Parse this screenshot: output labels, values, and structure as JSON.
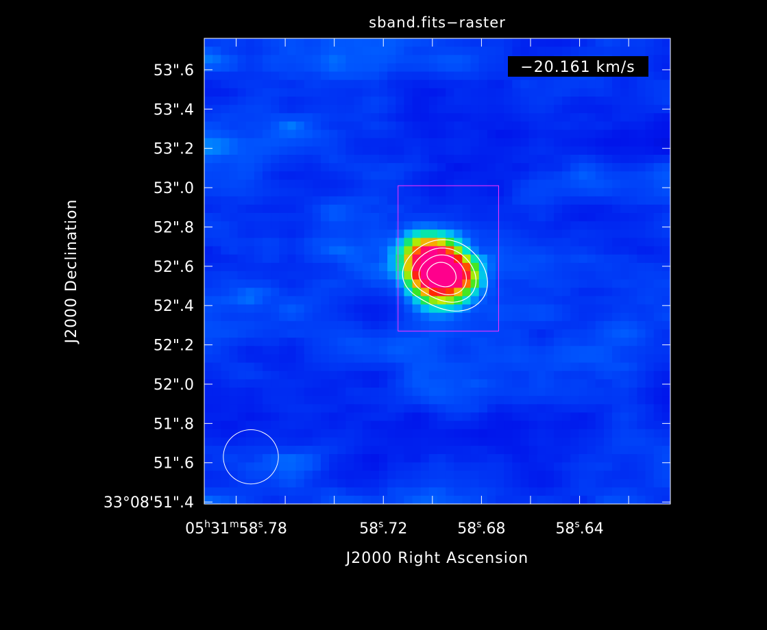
{
  "colors": {
    "background": "#000000",
    "axes": "#ffffff",
    "contour": "#ffffff",
    "region_box": "#ff33ff",
    "beam": "#ffffff",
    "velocity_bg": "#000000"
  },
  "chart_data": {
    "type": "heatmap",
    "title": "sband.fits−raster",
    "xlabel": "J2000 Right Ascension",
    "ylabel": "J2000 Declination",
    "velocity_label": "−20.161 km/s",
    "colormap": "rainbow",
    "x_ticks": [
      {
        "sec": 58.78,
        "label": "05h31m58s.78",
        "parts": [
          {
            "t": "05"
          },
          {
            "t": "h",
            "sup": true
          },
          {
            "t": "31"
          },
          {
            "t": "m",
            "sup": true
          },
          {
            "t": "58"
          },
          {
            "t": "s",
            "sup": true
          },
          {
            "t": ".78"
          }
        ]
      },
      {
        "sec": 58.72,
        "label": "58s.72",
        "parts": [
          {
            "t": "58"
          },
          {
            "t": "s",
            "sup": true
          },
          {
            "t": ".72"
          }
        ]
      },
      {
        "sec": 58.68,
        "label": "58s.68",
        "parts": [
          {
            "t": "58"
          },
          {
            "t": "s",
            "sup": true
          },
          {
            "t": ".68"
          }
        ]
      },
      {
        "sec": 58.64,
        "label": "58s.64",
        "parts": [
          {
            "t": "58"
          },
          {
            "t": "s",
            "sup": true
          },
          {
            "t": ".64"
          }
        ]
      }
    ],
    "x_minor_ticks_sec": [
      58.76,
      58.74,
      58.7,
      58.66,
      58.62
    ],
    "y_ticks": [
      {
        "arcsec": 51.4,
        "label": "33°08'51\".4"
      },
      {
        "arcsec": 51.6,
        "label": "51\".6"
      },
      {
        "arcsec": 51.8,
        "label": "51\".8"
      },
      {
        "arcsec": 52.0,
        "label": "52\".0"
      },
      {
        "arcsec": 52.2,
        "label": "52\".2"
      },
      {
        "arcsec": 52.4,
        "label": "52\".4"
      },
      {
        "arcsec": 52.6,
        "label": "52\".6"
      },
      {
        "arcsec": 52.8,
        "label": "52\".8"
      },
      {
        "arcsec": 53.0,
        "label": "53\".0"
      },
      {
        "arcsec": 53.2,
        "label": "53\".2"
      },
      {
        "arcsec": 53.4,
        "label": "53\".4"
      },
      {
        "arcsec": 53.6,
        "label": "53\".6"
      }
    ],
    "x_range_sec": [
      58.793,
      58.603
    ],
    "y_range_arcsec": [
      51.39,
      53.76
    ],
    "source_peak": {
      "ra_sec": 58.697,
      "dec_arcsec": 52.56
    },
    "region_box": {
      "ra_sec": [
        58.714,
        58.673
      ],
      "dec_arcsec": [
        52.27,
        53.01
      ]
    },
    "beam": {
      "ra_sec": 58.774,
      "dec_arcsec": 51.63,
      "major_arcsec": 0.28,
      "minor_arcsec": 0.24
    },
    "contour_levels": [
      0.25,
      0.45,
      0.65,
      0.85
    ]
  }
}
